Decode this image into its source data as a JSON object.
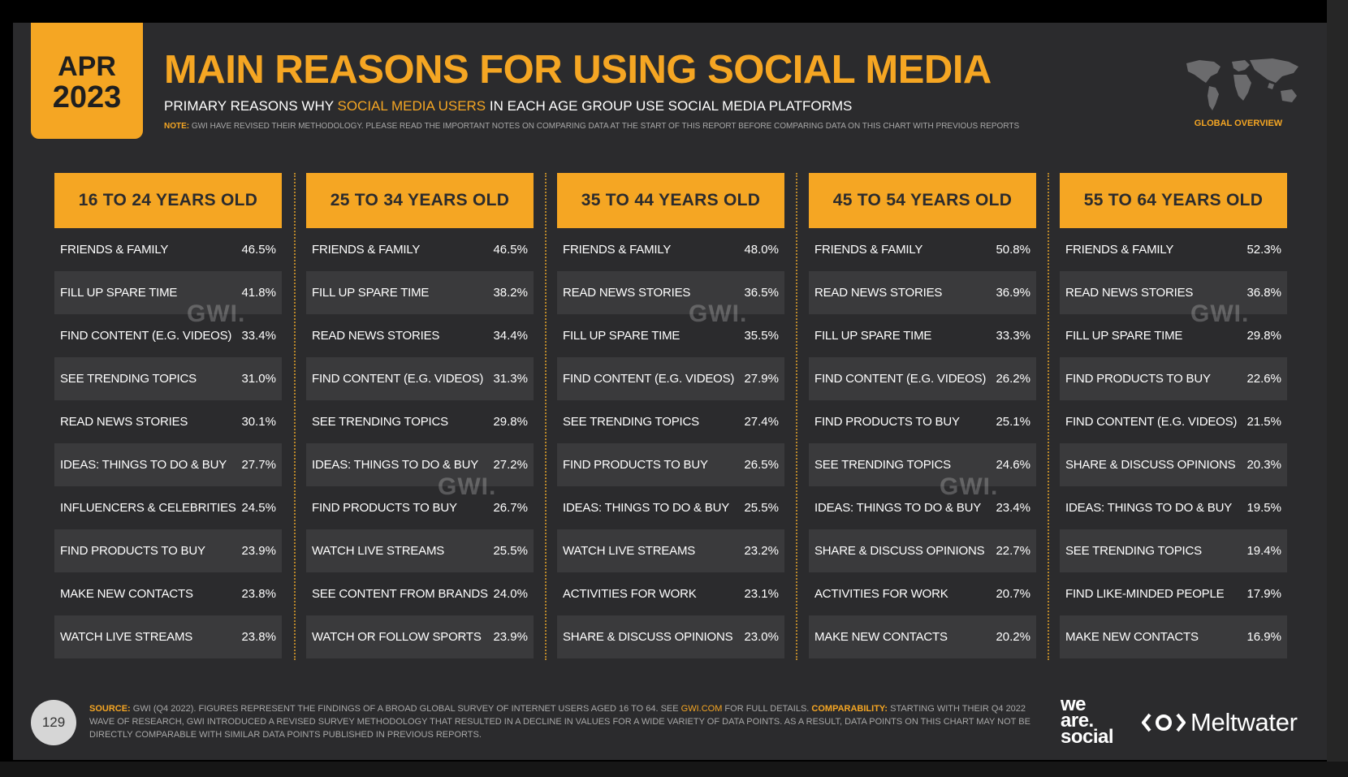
{
  "badge": {
    "month": "APR",
    "year": "2023"
  },
  "title": "MAIN REASONS FOR USING SOCIAL MEDIA",
  "subtitle": {
    "before": "PRIMARY REASONS WHY ",
    "highlight": "SOCIAL MEDIA USERS",
    "after": " IN EACH AGE GROUP USE SOCIAL MEDIA PLATFORMS"
  },
  "note": {
    "label": "NOTE:",
    "text": " GWI HAVE REVISED THEIR METHODOLOGY. PLEASE READ THE IMPORTANT NOTES ON COMPARING DATA AT THE START OF THIS REPORT BEFORE COMPARING DATA ON THIS CHART WITH PREVIOUS REPORTS"
  },
  "global_overview": "GLOBAL OVERVIEW",
  "watermark": "GWI.",
  "colors": {
    "accent": "#f5a623",
    "background": "#2b2b2d",
    "row_shade": "#3a3a3c"
  },
  "icons": [
    "world-map-icon",
    "meltwater-logo-icon"
  ],
  "chart_data": {
    "type": "table",
    "columns": [
      {
        "header": "16 TO 24 YEARS OLD",
        "rows": [
          {
            "label": "FRIENDS & FAMILY",
            "value": "46.5%"
          },
          {
            "label": "FILL UP SPARE TIME",
            "value": "41.8%"
          },
          {
            "label": "FIND CONTENT (E.G. VIDEOS)",
            "value": "33.4%"
          },
          {
            "label": "SEE TRENDING TOPICS",
            "value": "31.0%"
          },
          {
            "label": "READ NEWS STORIES",
            "value": "30.1%"
          },
          {
            "label": "IDEAS: THINGS TO DO & BUY",
            "value": "27.7%"
          },
          {
            "label": "INFLUENCERS & CELEBRITIES",
            "value": "24.5%"
          },
          {
            "label": "FIND PRODUCTS TO BUY",
            "value": "23.9%"
          },
          {
            "label": "MAKE NEW CONTACTS",
            "value": "23.8%"
          },
          {
            "label": "WATCH LIVE STREAMS",
            "value": "23.8%"
          }
        ]
      },
      {
        "header": "25 TO 34 YEARS OLD",
        "rows": [
          {
            "label": "FRIENDS & FAMILY",
            "value": "46.5%"
          },
          {
            "label": "FILL UP SPARE TIME",
            "value": "38.2%"
          },
          {
            "label": "READ NEWS STORIES",
            "value": "34.4%"
          },
          {
            "label": "FIND CONTENT (E.G. VIDEOS)",
            "value": "31.3%"
          },
          {
            "label": "SEE TRENDING TOPICS",
            "value": "29.8%"
          },
          {
            "label": "IDEAS: THINGS TO DO & BUY",
            "value": "27.2%"
          },
          {
            "label": "FIND PRODUCTS TO BUY",
            "value": "26.7%"
          },
          {
            "label": "WATCH LIVE STREAMS",
            "value": "25.5%"
          },
          {
            "label": "SEE CONTENT FROM BRANDS",
            "value": "24.0%"
          },
          {
            "label": "WATCH OR FOLLOW SPORTS",
            "value": "23.9%"
          }
        ]
      },
      {
        "header": "35 TO 44 YEARS OLD",
        "rows": [
          {
            "label": "FRIENDS & FAMILY",
            "value": "48.0%"
          },
          {
            "label": "READ NEWS STORIES",
            "value": "36.5%"
          },
          {
            "label": "FILL UP SPARE TIME",
            "value": "35.5%"
          },
          {
            "label": "FIND CONTENT (E.G. VIDEOS)",
            "value": "27.9%"
          },
          {
            "label": "SEE TRENDING TOPICS",
            "value": "27.4%"
          },
          {
            "label": "FIND PRODUCTS TO BUY",
            "value": "26.5%"
          },
          {
            "label": "IDEAS: THINGS TO DO & BUY",
            "value": "25.5%"
          },
          {
            "label": "WATCH LIVE STREAMS",
            "value": "23.2%"
          },
          {
            "label": "ACTIVITIES FOR WORK",
            "value": "23.1%"
          },
          {
            "label": "SHARE & DISCUSS OPINIONS",
            "value": "23.0%"
          }
        ]
      },
      {
        "header": "45 TO 54 YEARS OLD",
        "rows": [
          {
            "label": "FRIENDS & FAMILY",
            "value": "50.8%"
          },
          {
            "label": "READ NEWS STORIES",
            "value": "36.9%"
          },
          {
            "label": "FILL UP SPARE TIME",
            "value": "33.3%"
          },
          {
            "label": "FIND CONTENT (E.G. VIDEOS)",
            "value": "26.2%"
          },
          {
            "label": "FIND PRODUCTS TO BUY",
            "value": "25.1%"
          },
          {
            "label": "SEE TRENDING TOPICS",
            "value": "24.6%"
          },
          {
            "label": "IDEAS: THINGS TO DO & BUY",
            "value": "23.4%"
          },
          {
            "label": "SHARE & DISCUSS OPINIONS",
            "value": "22.7%"
          },
          {
            "label": "ACTIVITIES FOR WORK",
            "value": "20.7%"
          },
          {
            "label": "MAKE NEW CONTACTS",
            "value": "20.2%"
          }
        ]
      },
      {
        "header": "55 TO 64 YEARS OLD",
        "rows": [
          {
            "label": "FRIENDS & FAMILY",
            "value": "52.3%"
          },
          {
            "label": "READ NEWS STORIES",
            "value": "36.8%"
          },
          {
            "label": "FILL UP SPARE TIME",
            "value": "29.8%"
          },
          {
            "label": "FIND PRODUCTS TO BUY",
            "value": "22.6%"
          },
          {
            "label": "FIND CONTENT (E.G. VIDEOS)",
            "value": "21.5%"
          },
          {
            "label": "SHARE & DISCUSS OPINIONS",
            "value": "20.3%"
          },
          {
            "label": "IDEAS: THINGS TO DO & BUY",
            "value": "19.5%"
          },
          {
            "label": "SEE TRENDING TOPICS",
            "value": "19.4%"
          },
          {
            "label": "FIND LIKE-MINDED PEOPLE",
            "value": "17.9%"
          },
          {
            "label": "MAKE NEW CONTACTS",
            "value": "16.9%"
          }
        ]
      }
    ]
  },
  "footer": {
    "page_number": "129",
    "source_label": "SOURCE:",
    "source_text_1": " GWI (Q4 2022). FIGURES REPRESENT THE FINDINGS OF A BROAD GLOBAL SURVEY OF INTERNET USERS AGED 16 TO 64. SEE ",
    "source_link": "GWI.COM",
    "source_text_2": " FOR FULL DETAILS. ",
    "comparability_label": "COMPARABILITY:",
    "comparability_text": " STARTING WITH THEIR Q4 2022 WAVE OF RESEARCH, GWI INTRODUCED A REVISED SURVEY METHODOLOGY THAT RESULTED IN A DECLINE IN VALUES FOR A WIDE VARIETY OF DATA POINTS. AS A RESULT, DATA POINTS ON THIS CHART MAY NOT BE DIRECTLY COMPARABLE WITH SIMILAR DATA POINTS PUBLISHED IN PREVIOUS REPORTS.",
    "logo_was": [
      "we",
      "are.",
      "social"
    ],
    "logo_meltwater": "Meltwater"
  }
}
